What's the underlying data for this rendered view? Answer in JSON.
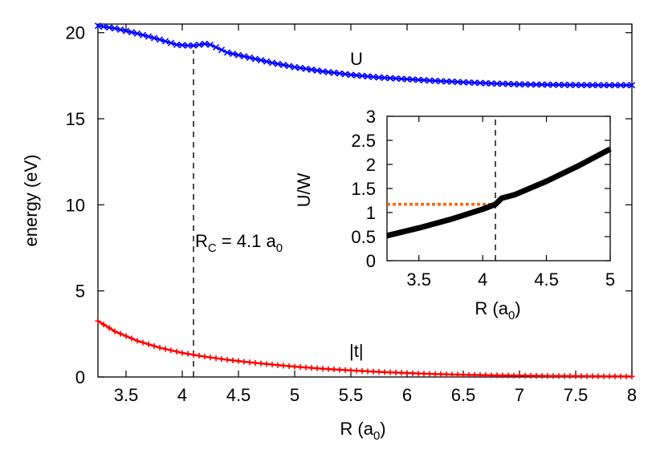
{
  "chart_data": [
    {
      "type": "line",
      "xlabel_main": "R (a",
      "xlabel_sub": "0",
      "xlabel_tail": ")",
      "ylabel": "energy (eV)",
      "xlim": [
        3.25,
        8
      ],
      "ylim": [
        0,
        20.5
      ],
      "x_ticks": [
        3.5,
        4,
        4.5,
        5,
        5.5,
        6,
        6.5,
        7,
        7.5,
        8
      ],
      "x_tick_labels": [
        "3.5",
        "4",
        "4.5",
        "5",
        "5.5",
        "6",
        "6.5",
        "7",
        "7.5",
        "8"
      ],
      "y_ticks": [
        0,
        5,
        10,
        15,
        20
      ],
      "y_tick_labels": [
        "0",
        "5",
        "10",
        "15",
        "20"
      ],
      "grid": false,
      "series": [
        {
          "name": "U",
          "color": "#0000ff",
          "marker": "x",
          "x": [
            3.25,
            3.4,
            3.6,
            3.8,
            3.95,
            4.05,
            4.1,
            4.15,
            4.2,
            4.25,
            4.3,
            4.4,
            4.6,
            4.8,
            5.0,
            5.25,
            5.5,
            5.75,
            6.0,
            6.25,
            6.5,
            6.75,
            7.0,
            7.25,
            7.5,
            7.75,
            8.0
          ],
          "y": [
            20.4,
            20.25,
            19.95,
            19.6,
            19.3,
            19.25,
            19.25,
            19.3,
            19.35,
            19.3,
            19.15,
            18.85,
            18.55,
            18.25,
            18.0,
            17.75,
            17.55,
            17.4,
            17.3,
            17.2,
            17.12,
            17.05,
            17.0,
            16.98,
            16.96,
            16.95,
            16.95
          ]
        },
        {
          "name": "|t|",
          "color": "#ff0000",
          "marker": "+",
          "x": [
            3.25,
            3.4,
            3.6,
            3.8,
            4.0,
            4.2,
            4.4,
            4.6,
            4.8,
            5.0,
            5.25,
            5.5,
            5.75,
            6.0,
            6.25,
            6.5,
            6.75,
            7.0,
            7.25,
            7.5,
            7.75,
            8.0
          ],
          "y": [
            3.25,
            2.65,
            2.1,
            1.7,
            1.4,
            1.18,
            1.0,
            0.85,
            0.72,
            0.6,
            0.48,
            0.38,
            0.3,
            0.23,
            0.17,
            0.13,
            0.1,
            0.08,
            0.06,
            0.05,
            0.04,
            0.03
          ]
        }
      ],
      "vline_x": 4.1,
      "vline_style": "dashed",
      "annotations": {
        "U_label": "U",
        "t_label": "|t|",
        "rc_prefix": "R",
        "rc_sub": "C",
        "rc_mid": " = 4.1 a",
        "rc_sub2": "0"
      }
    },
    {
      "type": "line",
      "inset": true,
      "xlabel_main": "R (a",
      "xlabel_sub": "0",
      "xlabel_tail": ")",
      "ylabel": "U/W",
      "xlim": [
        3.25,
        5
      ],
      "ylim": [
        0,
        3
      ],
      "x_ticks": [
        3.5,
        4,
        4.5,
        5
      ],
      "x_tick_labels": [
        "3.5",
        "4",
        "4.5",
        "5"
      ],
      "y_ticks": [
        0,
        0.5,
        1,
        1.5,
        2,
        2.5,
        3
      ],
      "y_tick_labels": [
        "0",
        "0.5",
        "1",
        "1.5",
        "2",
        "2.5",
        "3"
      ],
      "grid": false,
      "series": [
        {
          "color": "#000000",
          "x": [
            3.25,
            3.5,
            3.75,
            4.0,
            4.1,
            4.15,
            4.25,
            4.5,
            4.75,
            5.0
          ],
          "y": [
            0.52,
            0.68,
            0.86,
            1.07,
            1.17,
            1.3,
            1.37,
            1.65,
            1.97,
            2.32
          ]
        }
      ],
      "hline_y": 1.17,
      "hline_x_end": 4.1,
      "hline_color": "#ff6600",
      "hline_style": "dotted",
      "vline_x": 4.1,
      "vline_style": "dashed"
    }
  ]
}
